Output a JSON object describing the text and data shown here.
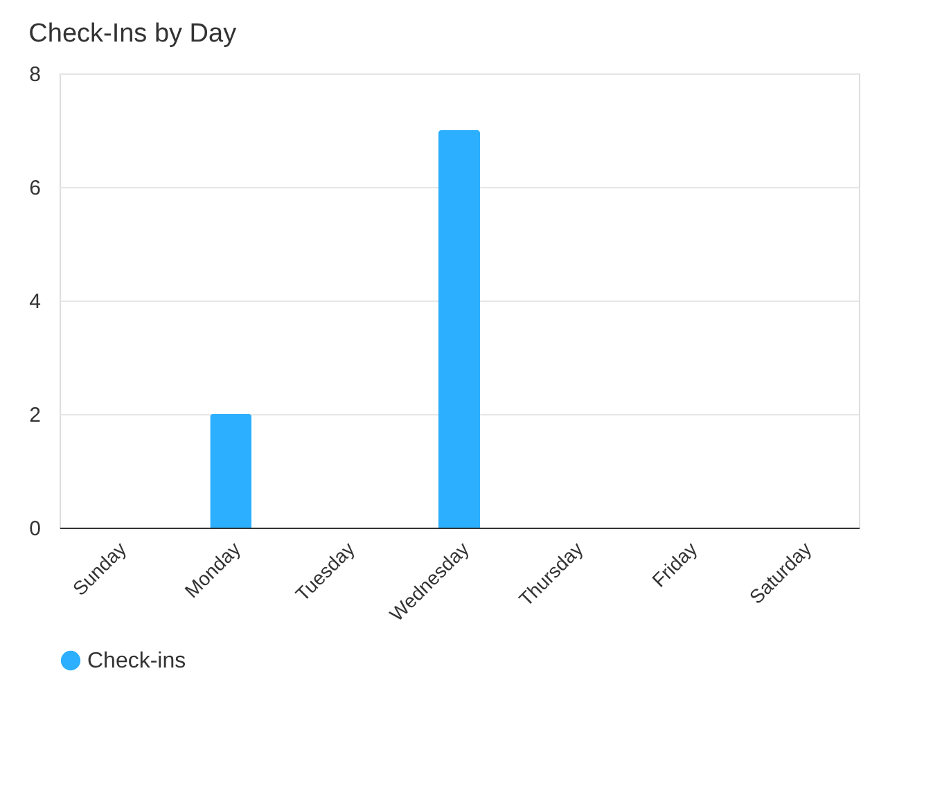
{
  "chart_data": {
    "type": "bar",
    "title": "Check-Ins by Day",
    "categories": [
      "Sunday",
      "Monday",
      "Tuesday",
      "Wednesday",
      "Thursday",
      "Friday",
      "Saturday"
    ],
    "series": [
      {
        "name": "Check-ins",
        "color": "#2caffe",
        "values": [
          0,
          2,
          0,
          7,
          0,
          0,
          0
        ]
      }
    ],
    "ylim": [
      0,
      8
    ],
    "yticks": [
      0,
      2,
      4,
      6,
      8
    ],
    "grid": "y",
    "legend": "bottom"
  }
}
